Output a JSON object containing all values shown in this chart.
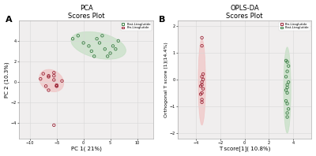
{
  "pca_title": "PCA",
  "pca_subtitle": "Scores Plot",
  "opls_title": "OPLS-DA",
  "opls_subtitle": "Scores Plot",
  "panel_a": "A",
  "panel_b": "B",
  "pca_xlabel": "PC 1( 21%)",
  "pca_ylabel": "PC 2 (10.3%)",
  "opls_xlabel": "T score[1]( 10.8%)",
  "opls_ylabel": "Orthogonal T score [1](14.4%)",
  "legend_post": "Post-Liraglutide",
  "legend_pre": "Pre-Liraglutide",
  "pca_post_x": [
    -2,
    -1,
    0,
    1,
    2.5,
    3,
    4,
    5,
    6,
    3.5,
    4.5,
    5.5,
    1.5,
    6.5,
    2
  ],
  "pca_post_y": [
    4.2,
    4.5,
    3.8,
    3.5,
    4.2,
    3.8,
    3.2,
    2.8,
    3.2,
    4.5,
    2.5,
    3.5,
    3.0,
    4.0,
    2.5
  ],
  "pca_pre_x": [
    -8,
    -7.5,
    -6.5,
    -5.5,
    -5,
    -5.5,
    -6.5,
    -5,
    -4,
    -6.5,
    -7,
    -5.5,
    -5
  ],
  "pca_pre_y": [
    0.3,
    0.8,
    0.5,
    0.2,
    -0.3,
    0.9,
    0.6,
    -0.4,
    0.1,
    -0.8,
    -0.4,
    0.6,
    -0.4
  ],
  "pca_pre_outlier_x": [
    -5.5
  ],
  "pca_pre_outlier_y": [
    -4.2
  ],
  "opls_post_x": [
    3.5,
    3.6,
    3.4,
    3.5,
    3.5,
    3.6,
    3.4,
    3.5,
    3.6,
    3.5,
    3.4,
    3.5,
    3.5,
    3.4,
    3.5
  ],
  "opls_post_y": [
    -1.4,
    -1.1,
    -0.8,
    -0.5,
    -0.3,
    -0.1,
    0.1,
    0.3,
    0.5,
    0.65,
    0.7,
    -1.25,
    -0.9,
    -0.4,
    -0.2
  ],
  "opls_pre_x": [
    -3.5,
    -3.4,
    -3.6,
    -3.5,
    -3.4,
    -3.5,
    -3.6,
    -3.5,
    -3.4,
    -3.5,
    -3.5,
    -3.5,
    -3.5
  ],
  "opls_pre_y": [
    -0.5,
    -0.35,
    -0.25,
    -0.1,
    0.0,
    0.1,
    -0.55,
    -0.2,
    0.2,
    -0.75,
    -0.85,
    1.55,
    1.25
  ],
  "post_color": "#3a7d44",
  "pre_color": "#9b2335",
  "post_fill": "#b8dbb8",
  "pre_fill": "#f0b8b8",
  "bg_color": "#f0eeee",
  "fig_bg": "#ffffff",
  "grid_color": "#d8d8d8",
  "pca_xlim": [
    -12,
    13
  ],
  "pca_ylim": [
    -5.5,
    6
  ],
  "opls_xlim": [
    -5.5,
    5.5
  ],
  "opls_ylim": [
    -2.2,
    2.2
  ],
  "pca_xticks": [
    -10,
    -5,
    0,
    5,
    10
  ],
  "pca_yticks": [
    -4,
    -2,
    0,
    2,
    4
  ],
  "opls_xticks": [
    -4,
    -2,
    0,
    2,
    4
  ],
  "opls_yticks": [
    -2,
    -1,
    0,
    1,
    2
  ]
}
